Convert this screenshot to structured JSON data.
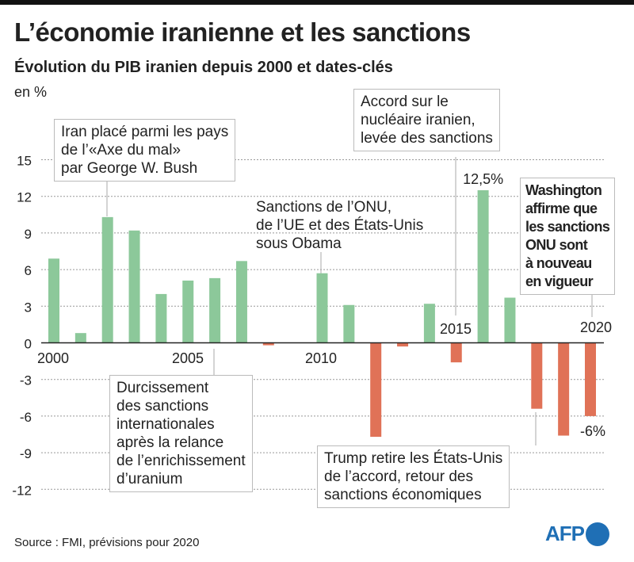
{
  "title": "L’économie iranienne et les sanctions",
  "subtitle": "Évolution du PIB iranien depuis 2000 et dates-clés",
  "unit": "en %",
  "source": "Source : FMI, prévisions pour 2020",
  "logo": "AFP",
  "colors": {
    "positive": "#8cc89a",
    "negative": "#e07257",
    "grid": "#999999"
  },
  "annotations": {
    "axis_of_evil": "Iran placé parmi les pays\nde l’«Axe du mal»\npar George W. Bush",
    "un_sanctions": "Sanctions de l’ONU,\nde l’UE et des États-Unis\nsous Obama",
    "nuclear_deal": "Accord sur le\nnucléaire iranien,\nlevée des sanctions",
    "washington": "Washington\naffirme que\nles sanctions\nONU sont\nà nouveau\nen vigueur",
    "tightening": "Durcissement\ndes sanctions\ninternationales\naprès la relance\nde l’enrichissement\nd’uranium",
    "trump": "Trump retire les États-Unis\nde l’accord, retour des\nsanctions économiques"
  },
  "chart_data": {
    "type": "bar",
    "title": "Évolution du PIB iranien depuis 2000 et dates-clés",
    "ylabel": "en %",
    "ylim": [
      -12,
      15
    ],
    "yticks": [
      15,
      12,
      9,
      6,
      3,
      0,
      -3,
      -6,
      -9,
      -12
    ],
    "grid": true,
    "categories": [
      2000,
      2001,
      2002,
      2003,
      2004,
      2005,
      2006,
      2007,
      2008,
      2009,
      2010,
      2011,
      2012,
      2013,
      2014,
      2015,
      2016,
      2017,
      2018,
      2019,
      2020
    ],
    "values": [
      6.9,
      0.8,
      10.3,
      9.2,
      4.0,
      5.1,
      5.3,
      6.7,
      -0.2,
      0.0,
      5.7,
      3.1,
      -7.7,
      -0.3,
      3.2,
      -1.6,
      12.5,
      3.7,
      -5.4,
      -7.6,
      -6.0
    ],
    "xtick_labels": [
      "2000",
      "2005",
      "2010",
      "2015",
      "2020"
    ],
    "data_labels": [
      {
        "year": 2016,
        "text": "12,5%"
      },
      {
        "year": 2020,
        "text": "-6%"
      }
    ]
  }
}
